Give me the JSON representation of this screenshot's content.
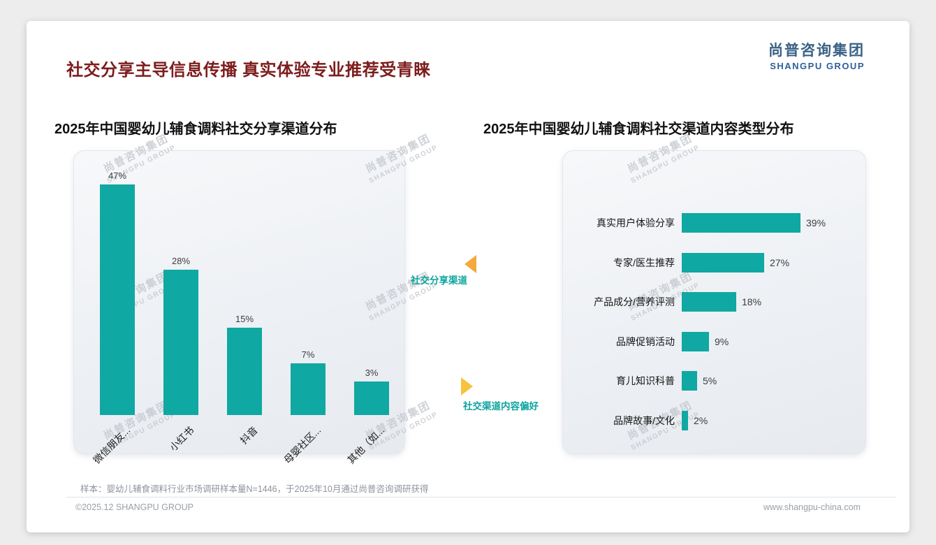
{
  "page": {
    "title": "社交分享主导信息传播 真实体验专业推荐受青睐",
    "sample_note": "样本：婴幼儿辅食调料行业市场调研样本量N=1446，于2025年10月通过尚普咨询调研获得",
    "footer_left": "©2025.12 SHANGPU GROUP",
    "footer_right": "www.shangpu-china.com"
  },
  "logo": {
    "cn": "尚普咨询集团",
    "en": "SHANGPU GROUP"
  },
  "watermark": {
    "cn": "尚普咨询集团",
    "en": "SHANGPU GROUP"
  },
  "annotations": {
    "left_chart_tag": "社交分享渠道",
    "right_chart_tag": "社交渠道内容偏好"
  },
  "colors": {
    "bar_teal": "#10a8a2",
    "title_red": "#7d1c1c",
    "logo_cn": "#3a6186",
    "logo_en": "#2d5f9a",
    "annotation_teal": "#0ca49e",
    "arrow_orange": "#f4a93c",
    "arrow_yellow": "#f6c33e",
    "watermark_gray": "#c3c7cd"
  },
  "chart_data": [
    {
      "type": "bar",
      "orientation": "vertical",
      "title": "2025年中国婴幼儿辅食调料社交分享渠道分布",
      "categories": [
        "微信朋友...",
        "小红书",
        "抖音",
        "母婴社区...",
        "其他（如..."
      ],
      "values": [
        47,
        28,
        15,
        7,
        3
      ],
      "unit": "%",
      "ylim": [
        0,
        50
      ],
      "grid": false,
      "legend": false
    },
    {
      "type": "bar",
      "orientation": "horizontal",
      "title": "2025年中国婴幼儿辅食调料社交渠道内容类型分布",
      "categories": [
        "真实用户体验分享",
        "专家/医生推荐",
        "产品成分/营养评测",
        "品牌促销活动",
        "育儿知识科普",
        "品牌故事/文化"
      ],
      "values": [
        39,
        27,
        18,
        9,
        5,
        2
      ],
      "unit": "%",
      "xlim": [
        0,
        45
      ],
      "grid": false,
      "legend": false
    }
  ]
}
